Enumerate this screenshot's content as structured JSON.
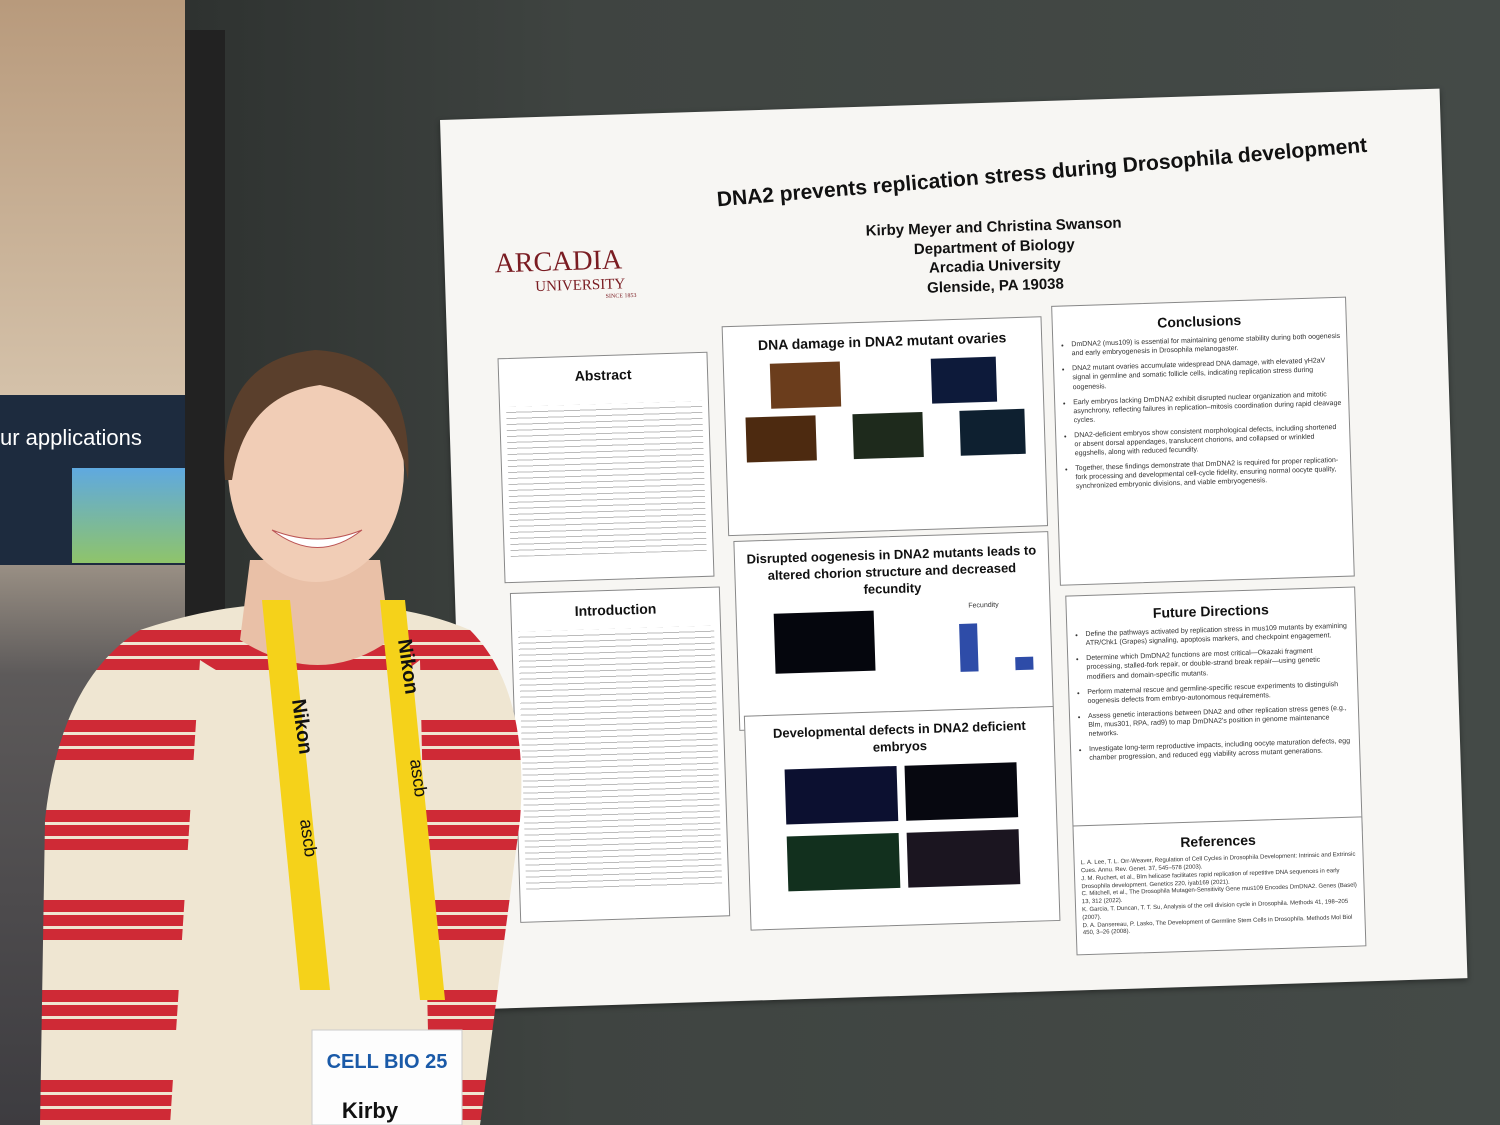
{
  "background": {
    "sign": "ur applications"
  },
  "poster": {
    "title": "DNA2 prevents replication stress during Drosophila development",
    "logo": {
      "name": "ARCADIA",
      "sub": "UNIVERSITY",
      "since": "SINCE 1853"
    },
    "authors": [
      "Kirby Meyer and Christina Swanson",
      "Department of Biology",
      "Arcadia University",
      "Glenside, PA 19038"
    ],
    "abstract": {
      "heading": "Abstract"
    },
    "introduction": {
      "heading": "Introduction"
    },
    "ovaries": {
      "heading": "DNA damage in DNA2 mutant ovaries"
    },
    "oogenesis": {
      "heading": "Disrupted oogenesis in DNA2 mutants leads to altered chorion structure and decreased fecundity",
      "chart_title": "Fecundity"
    },
    "embryos": {
      "heading": "Developmental defects in DNA2 deficient embryos"
    },
    "conclusions": {
      "heading": "Conclusions",
      "items": [
        "DmDNA2 (mus109) is essential for maintaining genome stability during both oogenesis and early embryogenesis in Drosophila melanogaster.",
        "DNA2 mutant ovaries accumulate widespread DNA damage, with elevated γH2aV signal in germline and somatic follicle cells, indicating replication stress during oogenesis.",
        "Early embryos lacking DmDNA2 exhibit disrupted nuclear organization and mitotic asynchrony, reflecting failures in replication–mitosis coordination during rapid cleavage cycles.",
        "DNA2-deficient embryos show consistent morphological defects, including shortened or absent dorsal appendages, translucent chorions, and collapsed or wrinkled eggshells, along with reduced fecundity.",
        "Together, these findings demonstrate that DmDNA2 is required for proper replication-fork processing and developmental cell-cycle fidelity, ensuring normal oocyte quality, synchronized embryonic divisions, and viable embryogenesis."
      ]
    },
    "future": {
      "heading": "Future Directions",
      "items": [
        "Define the pathways activated by replication stress in mus109 mutants by examining ATR/Chk1 (Grapes) signaling, apoptosis markers, and checkpoint engagement.",
        "Determine which DmDNA2 functions are most critical—Okazaki fragment processing, stalled-fork repair, or double-strand break repair—using genetic modifiers and domain-specific mutants.",
        "Perform maternal rescue and germline-specific rescue experiments to distinguish oogenesis defects from embryo-autonomous requirements.",
        "Assess genetic interactions between DNA2 and other replication stress genes (e.g., Blm, mus301, RPA, rad9) to map DmDNA2's position in genome maintenance networks.",
        "Investigate long-term reproductive impacts, including oocyte maturation defects, egg chamber progression, and reduced egg viability across mutant generations."
      ]
    },
    "references": {
      "heading": "References",
      "items": [
        "L. A. Lee, T. L. Orr-Weaver, Regulation of Cell Cycles in Drosophila Development: Intrinsic and Extrinsic Cues. Annu. Rev. Genet. 37, 545–578 (2003).",
        "J. M. Ruchert, et al., Blm helicase facilitates rapid replication of repetitive DNA sequences in early Drosophila development. Genetics 220, iyab169 (2021).",
        "C. Mitchell, et al., The Drosophila Mutagen-Sensitivity Gene mus109 Encodes DmDNA2. Genes (Basel) 13, 312 (2022).",
        "K. Garcia, T. Duncan, T. T. Su, Analysis of the cell division cycle in Drosophila. Methods 41, 198–205 (2007).",
        "D. A. Dansereau, P. Lasko, The Development of Germline Stem Cells in Drosophila. Methods Mol Biol 450, 3–26 (2008)."
      ]
    }
  },
  "lanyard": {
    "brand": "Nikon",
    "org": "ascb"
  },
  "badge": {
    "event": "CELL BIO 25",
    "name": "Kirby"
  }
}
